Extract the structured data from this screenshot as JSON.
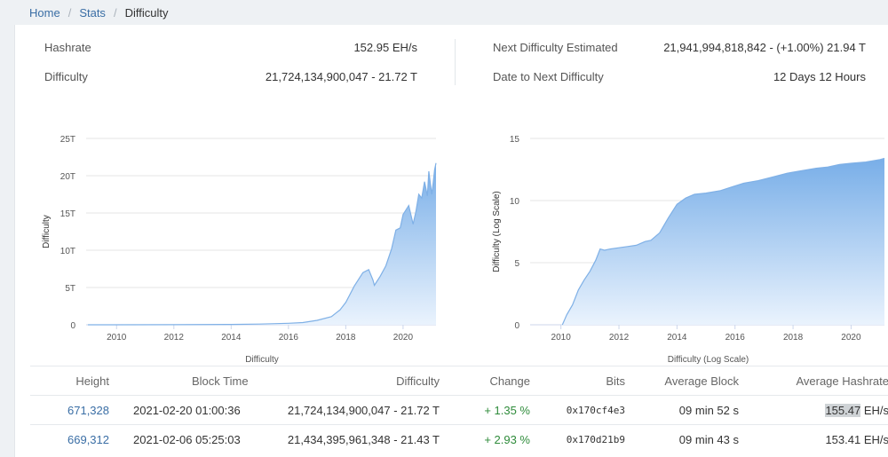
{
  "breadcrumb": {
    "home": "Home",
    "stats": "Stats",
    "current": "Difficulty"
  },
  "stats": {
    "hashrate_label": "Hashrate",
    "hashrate_value": "152.95 EH/s",
    "difficulty_label": "Difficulty",
    "difficulty_value": "21,724,134,900,047 - 21.72 T",
    "next_label": "Next Difficulty Estimated",
    "next_value": "21,941,994,818,842 - (+1.00%) 21.94 T",
    "date_label": "Date to Next Difficulty",
    "date_value": "12 Days 12 Hours"
  },
  "colors": {
    "accent": "#3a6ea5",
    "chart_line": "#7fb0e6",
    "positive": "#2e8b3a"
  },
  "chart_data": [
    {
      "type": "area",
      "xlabel": "Difficulty",
      "ylabel": "Difficulty",
      "x_ticks": [
        "2010",
        "2012",
        "2014",
        "2016",
        "2018",
        "2020"
      ],
      "y_ticks": [
        "0",
        "5T",
        "10T",
        "15T",
        "20T",
        "25T"
      ],
      "xlim": [
        2009.0,
        2021.15
      ],
      "ylim": [
        0,
        25
      ],
      "grid": true,
      "legend": "none",
      "series": [
        {
          "x": [
            2009.0,
            2012.0,
            2014.0,
            2015.0,
            2016.0,
            2016.5,
            2017.0,
            2017.5,
            2017.8,
            2018.0,
            2018.3,
            2018.6,
            2018.8,
            2018.95,
            2019.0,
            2019.2,
            2019.4,
            2019.6,
            2019.75,
            2019.9,
            2020.0,
            2020.2,
            2020.35,
            2020.45,
            2020.55,
            2020.65,
            2020.75,
            2020.85,
            2020.9,
            2021.0,
            2021.05,
            2021.1,
            2021.15
          ],
          "y": [
            0,
            0.01,
            0.05,
            0.1,
            0.2,
            0.3,
            0.6,
            1.1,
            2.0,
            3.0,
            5.2,
            7.0,
            7.4,
            6.0,
            5.3,
            6.5,
            7.9,
            10.2,
            12.7,
            13.0,
            14.8,
            16.0,
            13.5,
            15.2,
            17.5,
            17.0,
            19.2,
            17.3,
            20.6,
            17.5,
            19.0,
            20.8,
            21.7
          ]
        }
      ]
    },
    {
      "type": "area",
      "xlabel": "Difficulty (Log Scale)",
      "ylabel": "Difficulty (Log Scale)",
      "x_ticks": [
        "2010",
        "2012",
        "2014",
        "2016",
        "2018",
        "2020"
      ],
      "y_ticks": [
        "0",
        "5",
        "10",
        "15"
      ],
      "xlim": [
        2009.0,
        2021.15
      ],
      "ylim": [
        0,
        15
      ],
      "grid": true,
      "legend": "none",
      "series": [
        {
          "x": [
            2010.05,
            2010.2,
            2010.4,
            2010.6,
            2010.8,
            2011.0,
            2011.2,
            2011.35,
            2011.5,
            2011.7,
            2012.0,
            2012.3,
            2012.6,
            2012.9,
            2013.1,
            2013.4,
            2013.7,
            2014.0,
            2014.3,
            2014.6,
            2015.0,
            2015.5,
            2015.9,
            2016.3,
            2016.8,
            2017.3,
            2017.8,
            2018.3,
            2018.8,
            2019.2,
            2019.6,
            2020.0,
            2020.5,
            2021.0,
            2021.15
          ],
          "y": [
            0,
            0.8,
            1.6,
            2.8,
            3.6,
            4.3,
            5.2,
            6.1,
            6.0,
            6.1,
            6.2,
            6.3,
            6.4,
            6.7,
            6.8,
            7.4,
            8.6,
            9.7,
            10.2,
            10.5,
            10.6,
            10.8,
            11.1,
            11.4,
            11.6,
            11.9,
            12.2,
            12.4,
            12.6,
            12.7,
            12.9,
            13.0,
            13.1,
            13.3,
            13.4
          ]
        }
      ]
    }
  ],
  "table": {
    "headers": {
      "height": "Height",
      "block_time": "Block Time",
      "difficulty": "Difficulty",
      "change": "Change",
      "bits": "Bits",
      "avg_block": "Average Block",
      "avg_hashrate": "Average Hashrate"
    },
    "rows": [
      {
        "height": "671,328",
        "block_time": "2021-02-20 01:00:36",
        "difficulty": "21,724,134,900,047 - 21.72 T",
        "change": "+ 1.35 %",
        "bits": "0x170cf4e3",
        "avg_block": "09 min 52 s",
        "hashrate_num": "155.47",
        "hashrate_unit": "EH/s"
      },
      {
        "height": "669,312",
        "block_time": "2021-02-06 05:25:03",
        "difficulty": "21,434,395,961,348 - 21.43 T",
        "change": "+ 2.93 %",
        "bits": "0x170d21b9",
        "avg_block": "09 min 43 s",
        "hashrate_num": "153.41",
        "hashrate_unit": "EH/s"
      }
    ]
  }
}
